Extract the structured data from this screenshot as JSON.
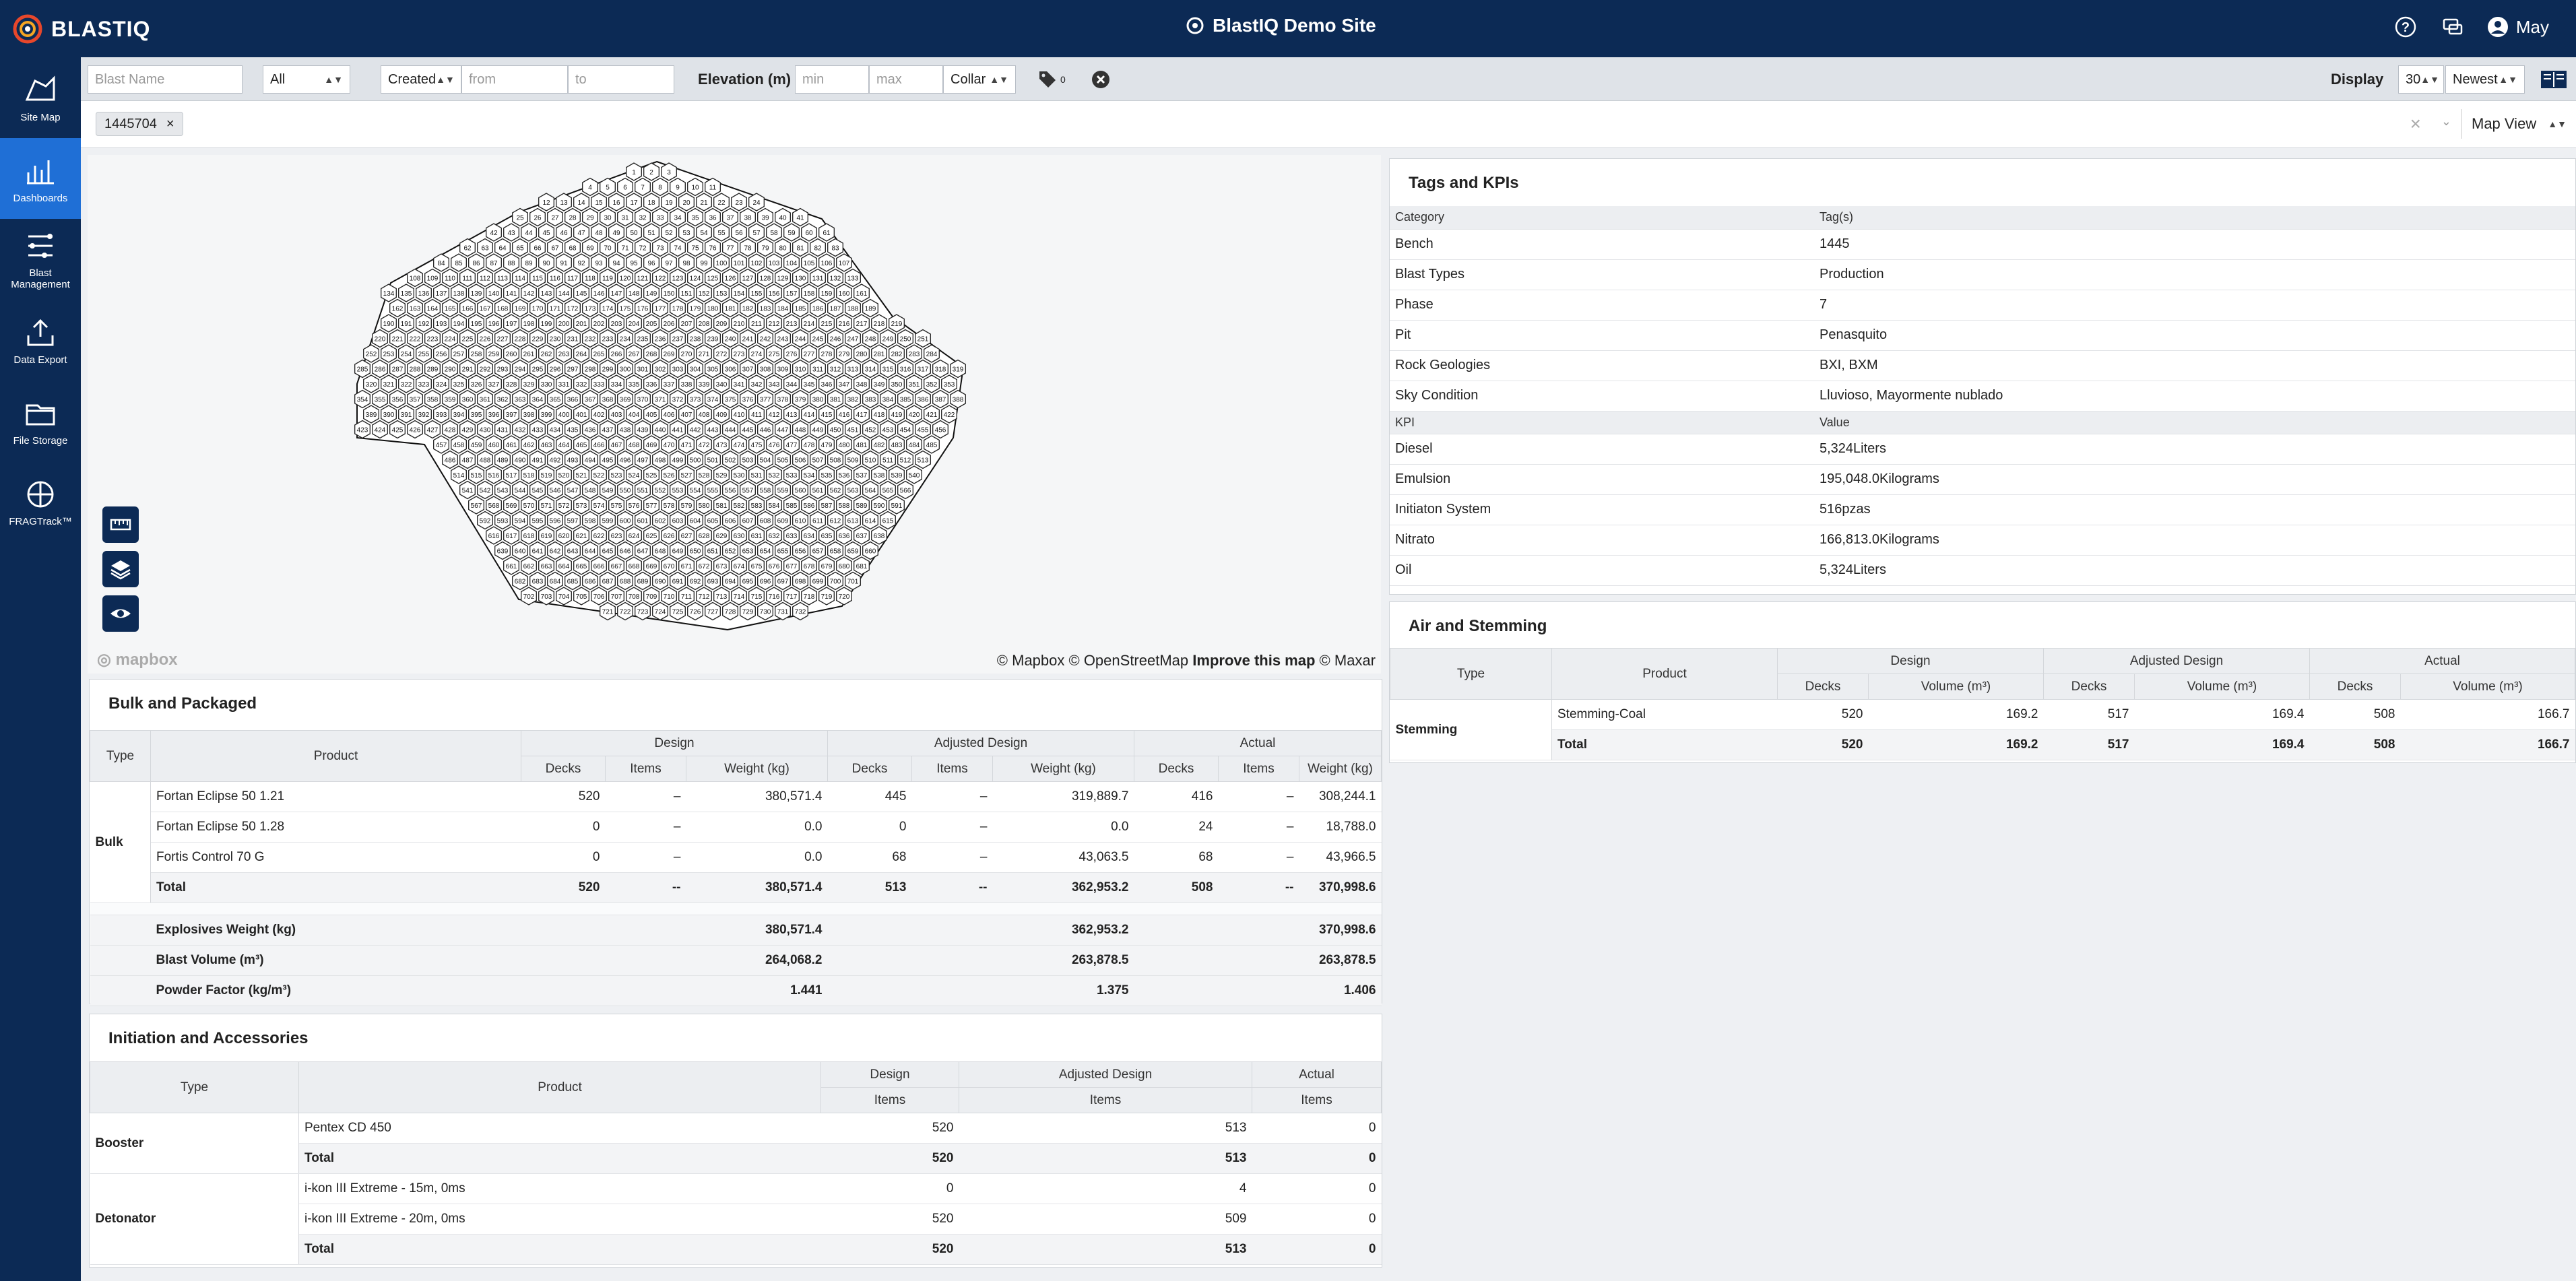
{
  "header": {
    "app_name": "BLASTIQ",
    "site_name": "BlastIQ Demo Site",
    "user": "May"
  },
  "nav": [
    {
      "label": "Site Map",
      "icon": "site-map-icon"
    },
    {
      "label": "Dashboards",
      "icon": "dashboard-icon"
    },
    {
      "label": "Blast Management",
      "icon": "blast-management-icon"
    },
    {
      "label": "Data Export",
      "icon": "export-icon"
    },
    {
      "label": "File Storage",
      "icon": "folder-icon"
    },
    {
      "label": "FRAGTrack™",
      "icon": "fragtrack-icon"
    }
  ],
  "filters": {
    "blast_name_placeholder": "Blast Name",
    "status": "All",
    "date_field": "Created",
    "from_placeholder": "from",
    "to_placeholder": "to",
    "elevation_label": "Elevation (m)",
    "min_placeholder": "min",
    "max_placeholder": "max",
    "elevation_ref": "Collar",
    "tag_count": "0",
    "display_label": "Display",
    "display_count": "30",
    "sort": "Newest"
  },
  "tagbar": {
    "chip": "1445704",
    "view": "Map View"
  },
  "map": {
    "attribution": "© Mapbox © OpenStreetMap",
    "improve": "Improve this map",
    "maxar": "© Maxar",
    "brand": "mapbox"
  },
  "bulk": {
    "title": "Bulk and Packaged",
    "headers": {
      "type": "Type",
      "product": "Product",
      "design": "Design",
      "adjusted": "Adjusted Design",
      "actual": "Actual",
      "decks": "Decks",
      "items": "Items",
      "weight": "Weight (kg)"
    },
    "type": "Bulk",
    "rows": [
      {
        "product": "Fortan Eclipse 50 1.21",
        "d_decks": "520",
        "d_items": "–",
        "d_weight": "380,571.4",
        "a_decks": "445",
        "a_items": "–",
        "a_weight": "319,889.7",
        "ac_decks": "416",
        "ac_items": "–",
        "ac_weight": "308,244.1"
      },
      {
        "product": "Fortan Eclipse 50 1.28",
        "d_decks": "0",
        "d_items": "–",
        "d_weight": "0.0",
        "a_decks": "0",
        "a_items": "–",
        "a_weight": "0.0",
        "ac_decks": "24",
        "ac_items": "–",
        "ac_weight": "18,788.0"
      },
      {
        "product": "Fortis Control 70 G",
        "d_decks": "0",
        "d_items": "–",
        "d_weight": "0.0",
        "a_decks": "68",
        "a_items": "–",
        "a_weight": "43,063.5",
        "ac_decks": "68",
        "ac_items": "–",
        "ac_weight": "43,966.5"
      },
      {
        "product": "Total",
        "d_decks": "520",
        "d_items": "--",
        "d_weight": "380,571.4",
        "a_decks": "513",
        "a_items": "--",
        "a_weight": "362,953.2",
        "ac_decks": "508",
        "ac_items": "--",
        "ac_weight": "370,998.6"
      }
    ],
    "summary": [
      {
        "label": "Explosives Weight (kg)",
        "design": "380,571.4",
        "adjusted": "362,953.2",
        "actual": "370,998.6"
      },
      {
        "label": "Blast Volume (m³)",
        "design": "264,068.2",
        "adjusted": "263,878.5",
        "actual": "263,878.5"
      },
      {
        "label": "Powder Factor (kg/m³)",
        "design": "1.441",
        "adjusted": "1.375",
        "actual": "1.406"
      }
    ]
  },
  "init": {
    "title": "Initiation and Accessories",
    "headers": {
      "type": "Type",
      "product": "Product",
      "design": "Design",
      "adjusted": "Adjusted Design",
      "actual": "Actual",
      "items": "Items"
    },
    "groups": [
      {
        "type": "Booster",
        "rows": [
          {
            "product": "Pentex CD 450",
            "design": "520",
            "adjusted": "513",
            "actual": "0"
          },
          {
            "product": "Total",
            "design": "520",
            "adjusted": "513",
            "actual": "0"
          }
        ]
      },
      {
        "type": "Detonator",
        "rows": [
          {
            "product": "i-kon III Extreme - 15m, 0ms",
            "design": "0",
            "adjusted": "4",
            "actual": "0"
          },
          {
            "product": "i-kon III Extreme - 20m, 0ms",
            "design": "520",
            "adjusted": "509",
            "actual": "0"
          },
          {
            "product": "Total",
            "design": "520",
            "adjusted": "513",
            "actual": "0"
          }
        ]
      }
    ]
  },
  "tags": {
    "title": "Tags and KPIs",
    "cat_header": "Category",
    "tag_header": "Tag(s)",
    "kpi_header": "KPI",
    "value_header": "Value",
    "tags": [
      {
        "k": "Bench",
        "v": "1445"
      },
      {
        "k": "Blast Types",
        "v": "Production"
      },
      {
        "k": "Phase",
        "v": "7"
      },
      {
        "k": "Pit",
        "v": "Penasquito"
      },
      {
        "k": "Rock Geologies",
        "v": "BXI, BXM"
      },
      {
        "k": "Sky Condition",
        "v": "Lluvioso, Mayormente nublado"
      }
    ],
    "kpis": [
      {
        "k": "Diesel",
        "v": "5,324Liters"
      },
      {
        "k": "Emulsion",
        "v": "195,048.0Kilograms"
      },
      {
        "k": "Initiaton System",
        "v": "516pzas"
      },
      {
        "k": "Nitrato",
        "v": "166,813.0Kilograms"
      },
      {
        "k": "Oil",
        "v": "5,324Liters"
      }
    ]
  },
  "stem": {
    "title": "Air and Stemming",
    "headers": {
      "type": "Type",
      "product": "Product",
      "design": "Design",
      "adjusted": "Adjusted Design",
      "actual": "Actual",
      "decks": "Decks",
      "volume": "Volume (m³)"
    },
    "type": "Stemming",
    "rows": [
      {
        "product": "Stemming-Coal",
        "d_decks": "520",
        "d_vol": "169.2",
        "a_decks": "517",
        "a_vol": "169.4",
        "ac_decks": "508",
        "ac_vol": "166.7"
      },
      {
        "product": "Total",
        "d_decks": "520",
        "d_vol": "169.2",
        "a_decks": "517",
        "a_vol": "169.4",
        "ac_decks": "508",
        "ac_vol": "166.7"
      }
    ]
  }
}
